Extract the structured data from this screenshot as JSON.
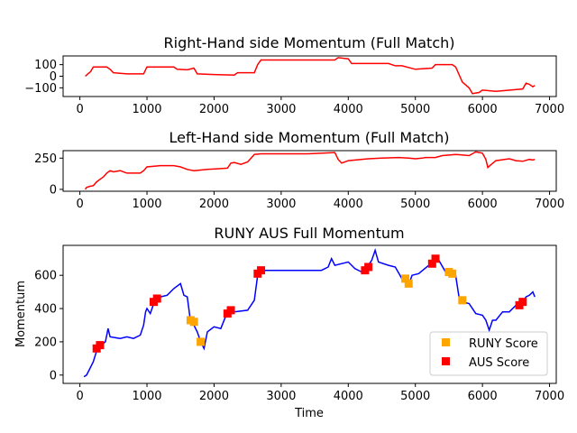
{
  "chart_data": [
    {
      "type": "line",
      "title": "Right-Hand side Momentum (Full Match)",
      "xlabel": "",
      "ylabel": "",
      "xlim": [
        -250,
        7100
      ],
      "ylim": [
        -175,
        175
      ],
      "xticks": [
        0,
        1000,
        2000,
        3000,
        4000,
        5000,
        6000,
        7000
      ],
      "yticks": [
        -100,
        0,
        100
      ],
      "grid": false,
      "series": [
        {
          "color": "#ff0000",
          "points": [
            [
              80,
              0
            ],
            [
              120,
              20
            ],
            [
              160,
              40
            ],
            [
              200,
              80
            ],
            [
              400,
              80
            ],
            [
              450,
              60
            ],
            [
              500,
              30
            ],
            [
              700,
              20
            ],
            [
              950,
              20
            ],
            [
              1000,
              80
            ],
            [
              1400,
              80
            ],
            [
              1450,
              60
            ],
            [
              1600,
              55
            ],
            [
              1700,
              70
            ],
            [
              1750,
              20
            ],
            [
              2000,
              15
            ],
            [
              2300,
              10
            ],
            [
              2350,
              30
            ],
            [
              2600,
              30
            ],
            [
              2650,
              100
            ],
            [
              2700,
              140
            ],
            [
              3800,
              140
            ],
            [
              3850,
              160
            ],
            [
              4000,
              150
            ],
            [
              4050,
              110
            ],
            [
              4600,
              110
            ],
            [
              4700,
              90
            ],
            [
              4800,
              90
            ],
            [
              5000,
              60
            ],
            [
              5250,
              70
            ],
            [
              5300,
              100
            ],
            [
              5550,
              100
            ],
            [
              5600,
              80
            ],
            [
              5700,
              -50
            ],
            [
              5800,
              -100
            ],
            [
              5850,
              -150
            ],
            [
              5950,
              -140
            ],
            [
              6000,
              -120
            ],
            [
              6200,
              -130
            ],
            [
              6600,
              -110
            ],
            [
              6650,
              -60
            ],
            [
              6700,
              -70
            ],
            [
              6750,
              -90
            ],
            [
              6780,
              -80
            ]
          ]
        }
      ]
    },
    {
      "type": "line",
      "title": "Left-Hand side Momentum (Full Match)",
      "xlabel": "",
      "ylabel": "",
      "xlim": [
        -250,
        7100
      ],
      "ylim": [
        -15,
        310
      ],
      "xticks": [
        0,
        1000,
        2000,
        3000,
        4000,
        5000,
        6000,
        7000
      ],
      "yticks": [
        0,
        250
      ],
      "grid": false,
      "series": [
        {
          "color": "#ff0000",
          "points": [
            [
              80,
              0
            ],
            [
              100,
              15
            ],
            [
              150,
              25
            ],
            [
              200,
              30
            ],
            [
              250,
              60
            ],
            [
              300,
              80
            ],
            [
              350,
              100
            ],
            [
              400,
              130
            ],
            [
              450,
              150
            ],
            [
              500,
              140
            ],
            [
              600,
              150
            ],
            [
              700,
              130
            ],
            [
              900,
              130
            ],
            [
              950,
              150
            ],
            [
              1000,
              180
            ],
            [
              1200,
              190
            ],
            [
              1400,
              190
            ],
            [
              1500,
              180
            ],
            [
              1600,
              160
            ],
            [
              1700,
              150
            ],
            [
              1900,
              160
            ],
            [
              2050,
              165
            ],
            [
              2200,
              170
            ],
            [
              2250,
              210
            ],
            [
              2300,
              215
            ],
            [
              2400,
              200
            ],
            [
              2500,
              220
            ],
            [
              2600,
              280
            ],
            [
              2700,
              285
            ],
            [
              3000,
              285
            ],
            [
              3400,
              285
            ],
            [
              3800,
              295
            ],
            [
              3850,
              240
            ],
            [
              3900,
              210
            ],
            [
              4000,
              230
            ],
            [
              4300,
              245
            ],
            [
              4500,
              250
            ],
            [
              4750,
              255
            ],
            [
              4900,
              250
            ],
            [
              5000,
              245
            ],
            [
              5100,
              250
            ],
            [
              5150,
              255
            ],
            [
              5300,
              255
            ],
            [
              5400,
              270
            ],
            [
              5600,
              280
            ],
            [
              5800,
              270
            ],
            [
              5900,
              300
            ],
            [
              6000,
              290
            ],
            [
              6050,
              240
            ],
            [
              6080,
              175
            ],
            [
              6120,
              195
            ],
            [
              6200,
              230
            ],
            [
              6400,
              245
            ],
            [
              6500,
              230
            ],
            [
              6600,
              225
            ],
            [
              6700,
              240
            ],
            [
              6750,
              235
            ],
            [
              6780,
              240
            ]
          ]
        }
      ]
    },
    {
      "type": "line",
      "title": "RUNY AUS Full Momentum",
      "xlabel": "Time",
      "ylabel": "Momentum",
      "xlim": [
        -250,
        7100
      ],
      "ylim": [
        -50,
        780
      ],
      "xticks": [
        0,
        1000,
        2000,
        3000,
        4000,
        5000,
        6000,
        7000
      ],
      "yticks": [
        0,
        200,
        400,
        600
      ],
      "grid": false,
      "legend_position": "lower right",
      "series": [
        {
          "color": "#0000ff",
          "points": [
            [
              60,
              -10
            ],
            [
              100,
              0
            ],
            [
              150,
              40
            ],
            [
              200,
              80
            ],
            [
              260,
              160
            ],
            [
              320,
              180
            ],
            [
              380,
              200
            ],
            [
              420,
              280
            ],
            [
              450,
              230
            ],
            [
              600,
              220
            ],
            [
              700,
              230
            ],
            [
              800,
              220
            ],
            [
              900,
              240
            ],
            [
              950,
              300
            ],
            [
              980,
              380
            ],
            [
              1000,
              400
            ],
            [
              1050,
              370
            ],
            [
              1100,
              430
            ],
            [
              1150,
              460
            ],
            [
              1200,
              470
            ],
            [
              1300,
              480
            ],
            [
              1400,
              520
            ],
            [
              1500,
              550
            ],
            [
              1550,
              480
            ],
            [
              1600,
              470
            ],
            [
              1650,
              320
            ],
            [
              1700,
              300
            ],
            [
              1750,
              260
            ],
            [
              1800,
              200
            ],
            [
              1850,
              160
            ],
            [
              1900,
              260
            ],
            [
              2000,
              290
            ],
            [
              2100,
              280
            ],
            [
              2200,
              380
            ],
            [
              2250,
              400
            ],
            [
              2300,
              380
            ],
            [
              2500,
              390
            ],
            [
              2600,
              450
            ],
            [
              2650,
              600
            ],
            [
              2700,
              630
            ],
            [
              2800,
              630
            ],
            [
              3200,
              630
            ],
            [
              3600,
              630
            ],
            [
              3700,
              650
            ],
            [
              3750,
              700
            ],
            [
              3800,
              660
            ],
            [
              4000,
              680
            ],
            [
              4100,
              640
            ],
            [
              4200,
              620
            ],
            [
              4300,
              660
            ],
            [
              4350,
              690
            ],
            [
              4400,
              750
            ],
            [
              4450,
              680
            ],
            [
              4600,
              660
            ],
            [
              4700,
              650
            ],
            [
              4800,
              580
            ],
            [
              4850,
              560
            ],
            [
              4900,
              540
            ],
            [
              4950,
              600
            ],
            [
              5050,
              610
            ],
            [
              5200,
              660
            ],
            [
              5250,
              680
            ],
            [
              5300,
              700
            ],
            [
              5350,
              690
            ],
            [
              5450,
              620
            ],
            [
              5550,
              630
            ],
            [
              5600,
              600
            ],
            [
              5650,
              470
            ],
            [
              5700,
              440
            ],
            [
              5800,
              430
            ],
            [
              5900,
              370
            ],
            [
              6000,
              360
            ],
            [
              6050,
              330
            ],
            [
              6100,
              270
            ],
            [
              6150,
              330
            ],
            [
              6200,
              330
            ],
            [
              6300,
              380
            ],
            [
              6400,
              380
            ],
            [
              6500,
              420
            ],
            [
              6550,
              440
            ],
            [
              6600,
              440
            ],
            [
              6650,
              470
            ],
            [
              6700,
              480
            ],
            [
              6750,
              500
            ],
            [
              6780,
              470
            ]
          ]
        }
      ],
      "scatter_series": [
        {
          "name": "RUNY Score",
          "color": "#ffa500",
          "points": [
            [
              1650,
              330
            ],
            [
              1700,
              320
            ],
            [
              1800,
              200
            ],
            [
              4850,
              580
            ],
            [
              4900,
              550
            ],
            [
              5500,
              620
            ],
            [
              5550,
              610
            ],
            [
              5700,
              450
            ]
          ]
        },
        {
          "name": "AUS Score",
          "color": "#ff0000",
          "points": [
            [
              250,
              160
            ],
            [
              300,
              180
            ],
            [
              1100,
              440
            ],
            [
              1150,
              460
            ],
            [
              2200,
              370
            ],
            [
              2250,
              390
            ],
            [
              2650,
              610
            ],
            [
              2700,
              630
            ],
            [
              4250,
              630
            ],
            [
              4300,
              650
            ],
            [
              5250,
              670
            ],
            [
              5300,
              700
            ],
            [
              6550,
              420
            ],
            [
              6600,
              440
            ]
          ]
        }
      ]
    }
  ]
}
